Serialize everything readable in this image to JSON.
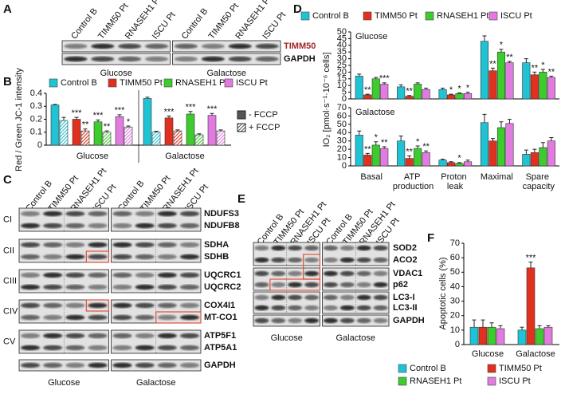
{
  "panels": {
    "a": {
      "letter": "A",
      "lanes": [
        "Control B",
        "TIMM50 Pt",
        "RNASEH1 Pt",
        "ISCU Pt"
      ],
      "proteins": [
        "TIMM50",
        "GAPDH"
      ],
      "groups": [
        "Glucose",
        "Galactose"
      ]
    },
    "c": {
      "letter": "C",
      "lanes": [
        "Control B",
        "TIMM50 Pt",
        "RNASEH1 Pt",
        "ISCU Pt"
      ],
      "complexes": [
        {
          "label": "CI",
          "proteins": [
            "NDUFS3",
            "NDUFB8"
          ]
        },
        {
          "label": "CII",
          "proteins": [
            "SDHA",
            "SDHB"
          ]
        },
        {
          "label": "CIII",
          "proteins": [
            "UQCRC1",
            "UQCRC2"
          ]
        },
        {
          "label": "CIV",
          "proteins": [
            "COX4I1",
            "MT-CO1"
          ]
        },
        {
          "label": "CV",
          "proteins": [
            "ATP5F1",
            "ATP5A1"
          ]
        }
      ],
      "loading": "GAPDH",
      "groups": [
        "Glucose",
        "Galactose"
      ]
    },
    "e": {
      "letter": "E",
      "lanes": [
        "Control B",
        "TIMM50 Pt",
        "RNASEH1 Pt",
        "ISCU Pt"
      ],
      "proteins": [
        "SOD2",
        "ACO2",
        "VDAC1",
        "p62",
        "LC3-I",
        "LC3-II",
        "GAPDH"
      ],
      "groups": [
        "Glucose",
        "Galactose"
      ]
    }
  },
  "chart_data": [
    {
      "type": "bar",
      "panel": "B",
      "ylabel": "Red / Green JC-1 intensity",
      "categories": [
        "Glucose",
        "Galactose"
      ],
      "ylim": [
        0,
        0.4
      ],
      "yticks": [
        0,
        0.1,
        0.2,
        0.3,
        0.4
      ],
      "fccp_legend": [
        "- FCCP",
        "+ FCCP"
      ],
      "series": [
        {
          "name": "Control B",
          "color": "#1fc3d3",
          "values": [
            0.31,
            0.36
          ],
          "errors": [
            0.005,
            0.01
          ],
          "labels": [
            null,
            null
          ],
          "fccp_values": [
            0.19,
            0.1
          ],
          "fccp_errors": [
            0.025,
            0.008
          ],
          "fccp_labels": [
            null,
            null
          ]
        },
        {
          "name": "TIMM50 Pt",
          "color": "#e0301e",
          "values": [
            0.2,
            0.21
          ],
          "errors": [
            0.015,
            0.015
          ],
          "labels": [
            "***",
            "***"
          ],
          "fccp_values": [
            0.11,
            0.11
          ],
          "fccp_errors": [
            0.015,
            0.008
          ],
          "fccp_labels": [
            "**",
            null
          ]
        },
        {
          "name": "RNASEH1 Pt",
          "color": "#3ccc2e",
          "values": [
            0.18,
            0.24
          ],
          "errors": [
            0.015,
            0.02
          ],
          "labels": [
            "***",
            "***"
          ],
          "fccp_values": [
            0.1,
            0.08
          ],
          "fccp_errors": [
            0.01,
            0.008
          ],
          "fccp_labels": [
            "**",
            null
          ]
        },
        {
          "name": "ISCU Pt",
          "color": "#e27be0",
          "values": [
            0.22,
            0.23
          ],
          "errors": [
            0.015,
            0.015
          ],
          "labels": [
            "***",
            "***"
          ],
          "fccp_values": [
            0.14,
            0.11
          ],
          "fccp_errors": [
            0.008,
            0.008
          ],
          "fccp_labels": [
            "*",
            null
          ]
        }
      ]
    },
    {
      "type": "bar",
      "panel": "D",
      "ylabel": "IO₂ [pmol·s⁻¹·10⁻⁶ cells]",
      "categories": [
        "Basal",
        "ATP production",
        "Proton leak",
        "Maximal",
        "Spare capacity"
      ],
      "subplots": [
        {
          "title": "Glucose",
          "ylim": [
            0,
            50
          ],
          "yticks": [
            0,
            5,
            10,
            15,
            20,
            25,
            30,
            35,
            40,
            45,
            50
          ]
        },
        {
          "title": "Galactose",
          "ylim": [
            0,
            70
          ],
          "yticks": [
            0,
            10,
            20,
            30,
            40,
            50,
            60,
            70
          ]
        }
      ],
      "series": [
        {
          "name": "Control B",
          "color": "#1fc3d3",
          "values": [
            [
              17,
              9,
              7,
              43,
              27
            ],
            [
              37,
              30,
              7,
              52,
              14
            ]
          ],
          "errors": [
            [
              1.5,
              1.5,
              1,
              4,
              3
            ],
            [
              5,
              6,
              1,
              10,
              5
            ]
          ],
          "labels": [
            [
              null,
              null,
              null,
              null,
              null
            ],
            [
              null,
              null,
              null,
              null,
              null
            ]
          ]
        },
        {
          "name": "TIMM50 Pt",
          "color": "#e0301e",
          "values": [
            [
              3,
              2,
              3,
              21,
              18
            ],
            [
              13,
              9,
              4,
              30,
              16
            ]
          ],
          "errors": [
            [
              0.5,
              0.5,
              0.5,
              2,
              2
            ],
            [
              2,
              3,
              1,
              3,
              4
            ]
          ],
          "labels": [
            [
              "**",
              "**",
              "*",
              "**",
              "**"
            ],
            [
              "**",
              "**",
              null,
              null,
              null
            ]
          ]
        },
        {
          "name": "RNASEH1 Pt",
          "color": "#3ccc2e",
          "values": [
            [
              15,
              11,
              4,
              35,
              20
            ],
            [
              25,
              21,
              3,
              46,
              22
            ]
          ],
          "errors": [
            [
              1,
              1,
              0.5,
              2,
              2
            ],
            [
              4,
              3,
              1,
              7,
              6
            ]
          ],
          "labels": [
            [
              null,
              null,
              "*",
              "*",
              "*"
            ],
            [
              "*",
              "*",
              "*",
              null,
              null
            ]
          ]
        },
        {
          "name": "ISCU Pt",
          "color": "#e27be0",
          "values": [
            [
              11,
              7,
              4,
              27,
              16
            ],
            [
              21,
              16,
              5,
              51,
              30
            ]
          ],
          "errors": [
            [
              1,
              1,
              1,
              1,
              1
            ],
            [
              2,
              2,
              2,
              5,
              4
            ]
          ],
          "labels": [
            [
              "***",
              null,
              "*",
              "**",
              "**"
            ],
            [
              "**",
              "**",
              null,
              null,
              null
            ]
          ]
        }
      ]
    },
    {
      "type": "bar",
      "panel": "F",
      "ylabel": "Apoptotic cells (%)",
      "categories": [
        "Glucose",
        "Galactose"
      ],
      "ylim": [
        0,
        70
      ],
      "yticks": [
        0,
        10,
        20,
        30,
        40,
        50,
        60,
        70
      ],
      "series": [
        {
          "name": "Control B",
          "color": "#1fc3d3",
          "values": [
            12,
            10
          ],
          "errors": [
            5,
            2
          ],
          "labels": [
            null,
            null
          ]
        },
        {
          "name": "TIMM50 Pt",
          "color": "#e0301e",
          "values": [
            12,
            53
          ],
          "errors": [
            5,
            4
          ],
          "labels": [
            null,
            "***"
          ]
        },
        {
          "name": "RNASEH1 Pt",
          "color": "#3ccc2e",
          "values": [
            12,
            11
          ],
          "errors": [
            3,
            2
          ],
          "labels": [
            null,
            null
          ]
        },
        {
          "name": "ISCU Pt",
          "color": "#e27be0",
          "values": [
            11,
            12
          ],
          "errors": [
            2,
            1
          ],
          "labels": [
            null,
            null
          ]
        }
      ]
    }
  ]
}
